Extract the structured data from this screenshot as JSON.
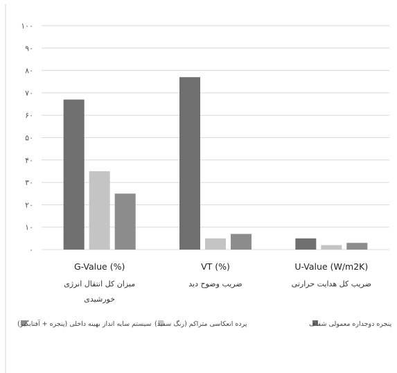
{
  "chart_data": {
    "type": "bar",
    "ylim": [
      0,
      100
    ],
    "yticks": [
      0,
      10,
      20,
      30,
      40,
      50,
      60,
      70,
      80,
      90,
      100
    ],
    "ytick_labels": [
      "۰",
      "۱۰",
      "۲۰",
      "۳۰",
      "۴۰",
      "۵۰",
      "۶۰",
      "۷۰",
      "۸۰",
      "۹۰",
      "۱۰۰"
    ],
    "grid": true,
    "legend_position": "bottom",
    "categories": [
      {
        "en": "G-Value (%)",
        "fa": [
          "میزان کل انتقال انرژی",
          "خورشیدی"
        ]
      },
      {
        "en": "VT (%)",
        "fa": [
          "ضریب وضوح دید"
        ]
      },
      {
        "en": "U-Value (W/m2K)",
        "fa": [
          "ضریب کل هدایت حرارتی"
        ]
      }
    ],
    "series": [
      {
        "name": "پنجره دوجداره معمولی شفاف",
        "color": "#6f6f6f",
        "values": [
          67,
          77,
          5
        ]
      },
      {
        "name": "پرده انعکاسی متراکم (رنگ سفید)",
        "color": "#c4c4c4",
        "values": [
          35,
          5,
          2
        ]
      },
      {
        "name": "سیستم سایه انداز بهینه داخلی (پنجره + آفتابگیر)",
        "color": "#8c8c8c",
        "values": [
          25,
          7,
          3
        ]
      }
    ]
  }
}
